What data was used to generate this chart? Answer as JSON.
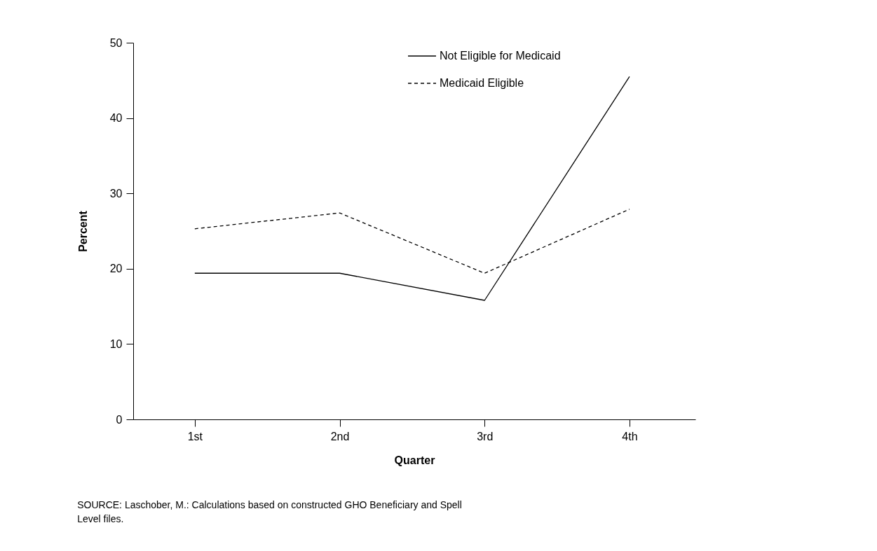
{
  "chart_data": {
    "type": "line",
    "xlabel": "Quarter",
    "ylabel": "Percent",
    "categories": [
      "1st",
      "2nd",
      "3rd",
      "4th"
    ],
    "series": [
      {
        "name": "Not Eligible for Medicaid",
        "color": "#000000",
        "line_style": "solid",
        "values": [
          19.4,
          19.4,
          15.8,
          45.5
        ]
      },
      {
        "name": "Medicaid Eligible",
        "color": "#000000",
        "line_style": "dashed",
        "values": [
          25.3,
          27.4,
          19.4,
          27.9
        ]
      }
    ],
    "ylim": [
      0,
      50
    ],
    "yticks": [
      0,
      10,
      20,
      30,
      40,
      50
    ],
    "grid": false,
    "legend": "top right",
    "marker": "none",
    "annotations": [
      "SOURCE:  Laschober, M.: Calculations based on constructed GHO Beneficiary and Spell Level files."
    ]
  }
}
